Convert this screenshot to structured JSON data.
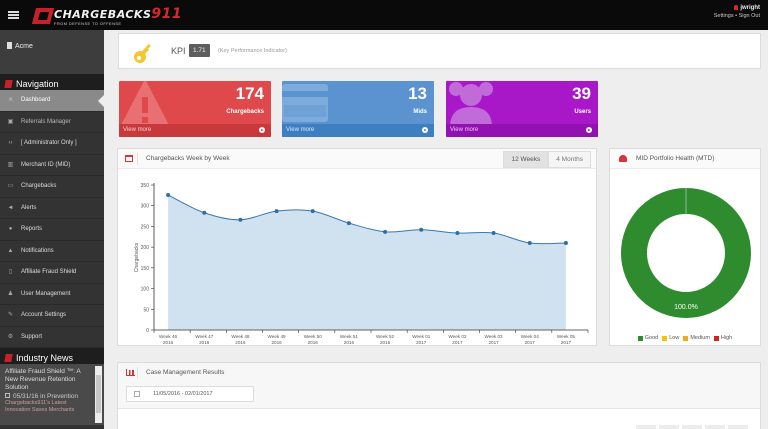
{
  "topbar": {
    "brand_text": "CHARGEBACKS",
    "brand_num": "911",
    "brand_tagline": "FROM DEFENSE TO OFFENSE",
    "username": "jwright",
    "settings_label": "Settings",
    "separator": "•",
    "signout_label": "Sign Out"
  },
  "sidebar": {
    "account": "Acme",
    "nav_header": "Navigation",
    "items": [
      {
        "label": "Dashboard",
        "icon": "dashboard-icon",
        "glyph": "■"
      },
      {
        "label": "Referrals Manager",
        "icon": "referrals-icon",
        "glyph": "▣"
      },
      {
        "label": "[ Administrator Only ]",
        "icon": "code-icon",
        "glyph": "‹›"
      },
      {
        "label": "Merchant ID (MID)",
        "icon": "bank-icon",
        "glyph": "▥"
      },
      {
        "label": "Chargebacks",
        "icon": "credit-card-icon",
        "glyph": "▭"
      },
      {
        "label": "Alerts",
        "icon": "bullhorn-icon",
        "glyph": "◄"
      },
      {
        "label": "Reports",
        "icon": "globe-icon",
        "glyph": "●"
      },
      {
        "label": "Notifications",
        "icon": "warning-icon",
        "glyph": "▲"
      },
      {
        "label": "Affiliate Fraud Shield",
        "icon": "shield-icon",
        "glyph": "▯"
      },
      {
        "label": "User Management",
        "icon": "users-icon",
        "glyph": "♟"
      },
      {
        "label": "Account Settings",
        "icon": "wrench-icon",
        "glyph": "✎"
      },
      {
        "label": "Support",
        "icon": "support-icon",
        "glyph": "⚙"
      }
    ],
    "news_header": "Industry News",
    "news": {
      "title": "Affiliate Fraud Shield ™: A New Revenue Retention Solution",
      "date": "05/31/16",
      "in_label": "in",
      "category": "Prevention",
      "next_title": "Chargebacks911's Latest Innovation Saves Merchants"
    }
  },
  "kpi": {
    "label": "KPI",
    "value": "1.71",
    "description": "(Key Performance Indicator)"
  },
  "stats": [
    {
      "value": "174",
      "label": "Chargebacks",
      "link": "View more",
      "color": "#e0494c"
    },
    {
      "value": "13",
      "label": "Mids",
      "link": "View more",
      "color": "#5a93cf"
    },
    {
      "value": "39",
      "label": "Users",
      "link": "View more",
      "color": "#a818c9"
    }
  ],
  "chargebacks_panel": {
    "title": "Chargebacks Week by Week",
    "range_buttons": [
      "12 Weeks",
      "4 Months"
    ],
    "active_range": "12 Weeks"
  },
  "chart_data": [
    {
      "type": "area",
      "title": "Chargebacks Week by Week",
      "xlabel": "",
      "ylabel": "Chargebacks",
      "ylim": [
        0,
        350
      ],
      "yticks": [
        0,
        50,
        100,
        150,
        200,
        250,
        300,
        350
      ],
      "grid": false,
      "categories": [
        "Week 46 2016",
        "Week 47 2016",
        "Week 48 2016",
        "Week 49 2016",
        "Week 50 2016",
        "Week 51 2016",
        "Week 52 2016",
        "Week 01 2017",
        "Week 02 2017",
        "Week 03 2017",
        "Week 04 2017",
        "Week 05 2017"
      ],
      "x_labels": [
        [
          "Week 46",
          "2016"
        ],
        [
          "Week 47",
          "2016"
        ],
        [
          "Week 48",
          "2016"
        ],
        [
          "Week 49",
          "2016"
        ],
        [
          "Week 50",
          "2016"
        ],
        [
          "Week 51",
          "2016"
        ],
        [
          "Week 52",
          "2016"
        ],
        [
          "Week 01",
          "2017"
        ],
        [
          "Week 02",
          "2017"
        ],
        [
          "Week 03",
          "2017"
        ],
        [
          "Week 04",
          "2017"
        ],
        [
          "Week 05",
          "2017"
        ]
      ],
      "series": [
        {
          "name": "Chargebacks",
          "values": [
            326,
            283,
            266,
            287,
            287,
            258,
            237,
            242,
            234,
            234,
            210,
            210
          ]
        }
      ],
      "colors": {
        "line": "#3a78ad",
        "fill": "#d0e2f0",
        "point": "#2f6fa3"
      }
    },
    {
      "type": "pie",
      "title": "MID Portfolio Health (MTD)",
      "donut": true,
      "categories": [
        "Good",
        "Low",
        "Medium",
        "High"
      ],
      "values": [
        100.0,
        0,
        0,
        0
      ],
      "data_label": "100.0%",
      "colors": [
        "#2e8b2e",
        "#f2c40f",
        "#f0a81c",
        "#d22222"
      ],
      "legend_position": "bottom"
    }
  ],
  "mid_panel": {
    "title": "MID Portfolio Health (MTD)",
    "center_label": "100.0%",
    "legend": [
      {
        "label": "Good",
        "color": "#2e8b2e"
      },
      {
        "label": "Low",
        "color": "#f2c40f"
      },
      {
        "label": "Medium",
        "color": "#f0a81c"
      },
      {
        "label": "High",
        "color": "#d22222"
      }
    ]
  },
  "case_panel": {
    "title": "Case Management Results",
    "date_range": "11/05/2016 - 02/01/2017"
  }
}
